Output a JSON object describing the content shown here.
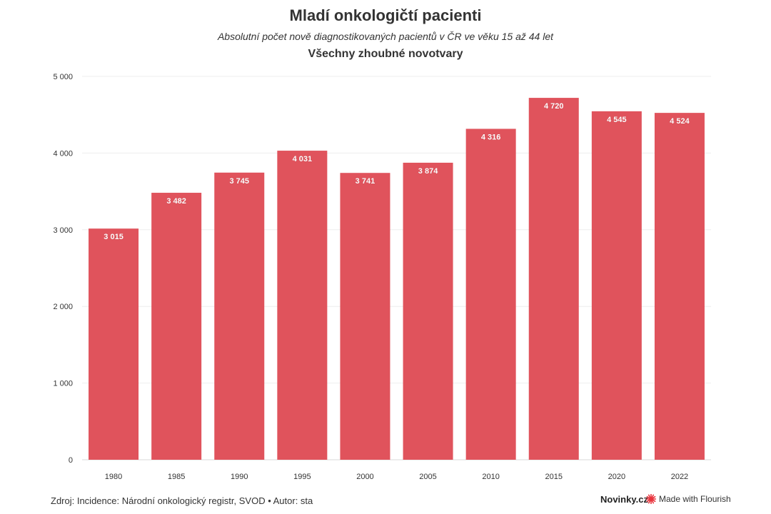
{
  "header": {
    "title": "Mladí onkologičtí pacienti",
    "subtitle": "Absolutní počet nově diagnostikovaných pacientů v ČR ve věku 15 až 44 let"
  },
  "chart_data": {
    "type": "bar",
    "title": "Všechny zhoubné novotvary",
    "categories": [
      "1980",
      "1985",
      "1990",
      "1995",
      "2000",
      "2005",
      "2010",
      "2015",
      "2020",
      "2022"
    ],
    "values": [
      3015,
      3482,
      3745,
      4031,
      3741,
      3874,
      4316,
      4720,
      4545,
      4524
    ],
    "value_labels": [
      "3 015",
      "3 482",
      "3 745",
      "4 031",
      "3 741",
      "3 874",
      "4 316",
      "4 720",
      "4 545",
      "4 524"
    ],
    "ylim": [
      0,
      5000
    ],
    "y_ticks": [
      0,
      1000,
      2000,
      3000,
      4000,
      5000
    ],
    "y_tick_labels": [
      "0",
      "1 000",
      "2 000",
      "3 000",
      "4 000",
      "5 000"
    ],
    "xlabel": "",
    "ylabel": "",
    "grid": true,
    "bar_color": "#e0535c"
  },
  "footer": {
    "source": "Zdroj: Incidence: Národní onkologický registr, SVOD • Autor: sta",
    "brand": "Novinky.cz",
    "made_with": "Made with Flourish",
    "made_with_icon": "flourish-star-icon",
    "icon_color": "#e8333c"
  }
}
